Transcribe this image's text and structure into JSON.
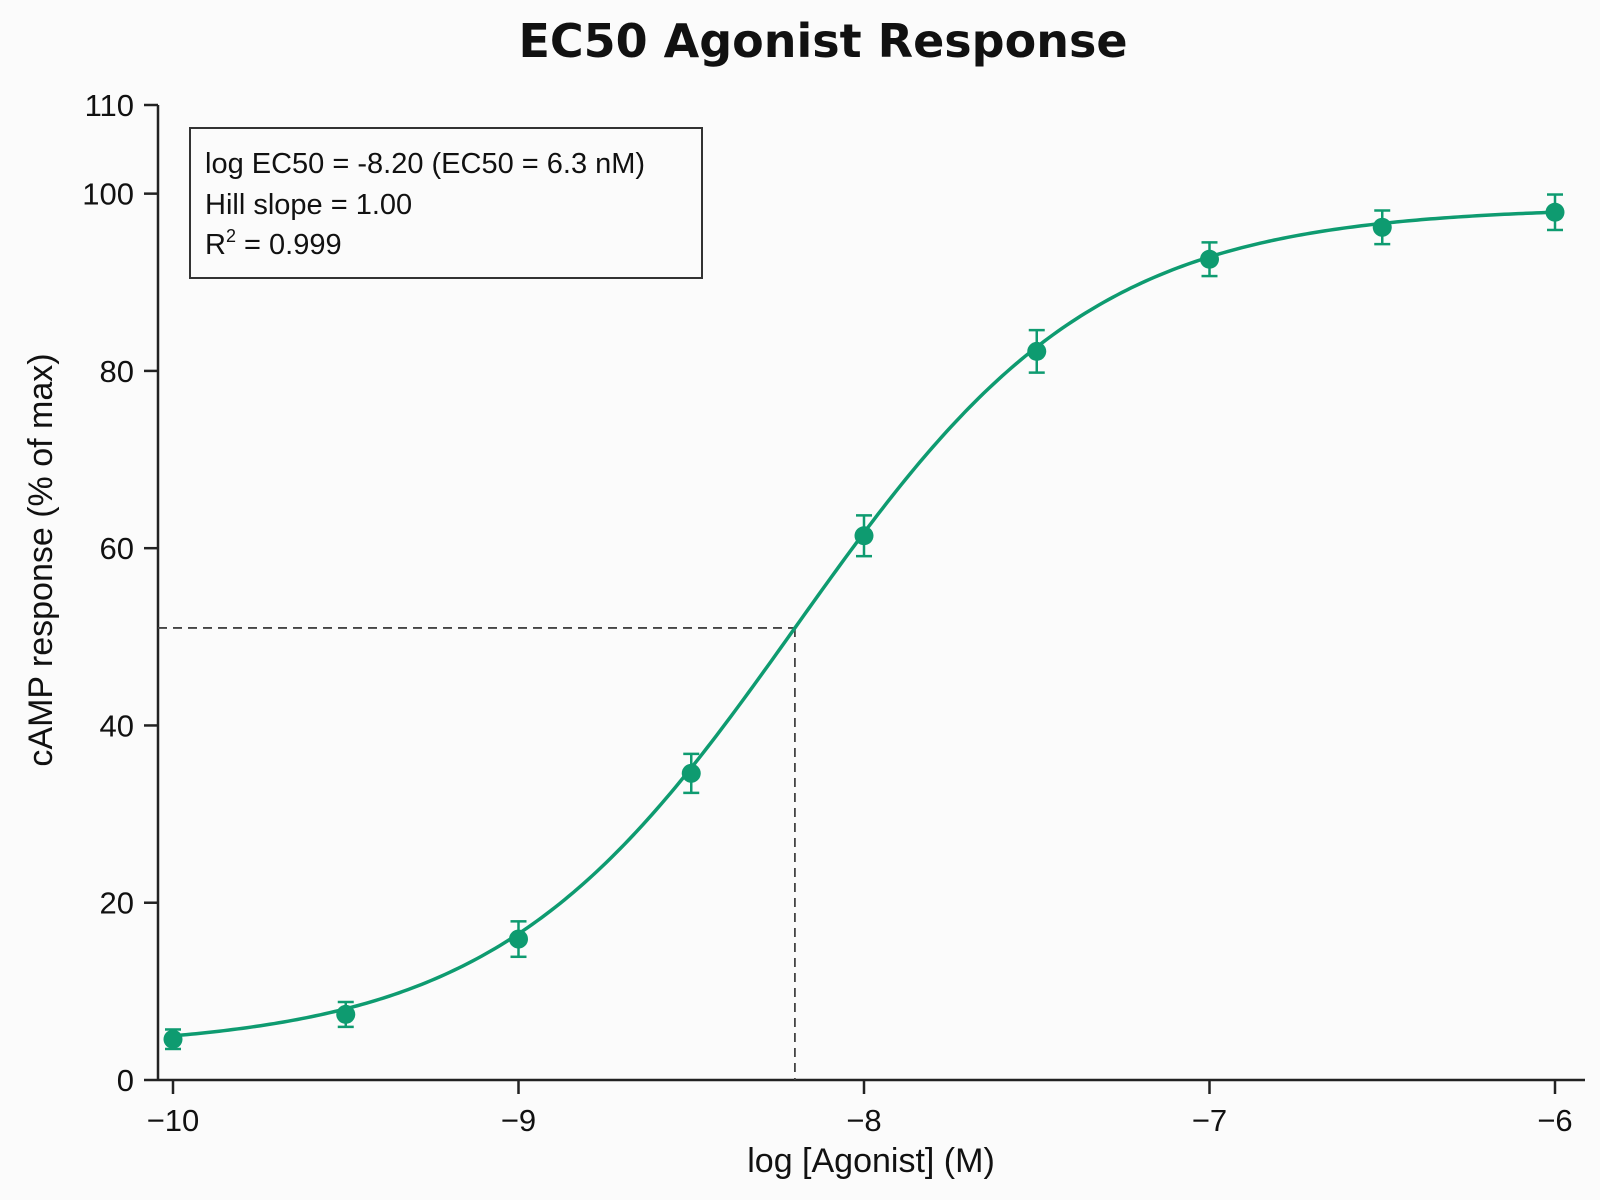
{
  "chart_data": {
    "type": "scatter",
    "title": "EC50 Agonist Response",
    "xlabel": "log [Agonist] (M)",
    "ylabel": "cAMP response (% of max)",
    "xlim": [
      -10,
      -6
    ],
    "ylim": [
      0,
      110
    ],
    "x_ticks": [
      -10,
      -9,
      -8,
      -7,
      -6
    ],
    "x_tick_labels": [
      "−10",
      "−9",
      "−8",
      "−7",
      "−6"
    ],
    "y_ticks": [
      0,
      20,
      40,
      60,
      80,
      100,
      110
    ],
    "y_tick_labels": [
      "0",
      "20",
      "40",
      "60",
      "80",
      "100",
      "110"
    ],
    "grid": false,
    "color": "#0e9b70",
    "series": [
      {
        "x": [
          -10,
          -9.5,
          -9,
          -8.5,
          -8,
          -7.5,
          -7,
          -6.5,
          -6
        ],
        "y": [
          4.6,
          7.4,
          15.9,
          34.6,
          61.4,
          82.2,
          92.6,
          96.2,
          97.9
        ],
        "error": [
          1.1,
          1.4,
          2.0,
          2.2,
          2.3,
          2.4,
          1.9,
          1.9,
          2.0
        ]
      }
    ],
    "fit": {
      "bottom": 3.5,
      "top": 98.5,
      "log_ec50": -8.2,
      "hill_slope": 1.0
    },
    "reference_lines": {
      "x": -8.2,
      "y": 51
    },
    "annotations": [
      {
        "text": "log EC50 = -8.20 (EC50 = 6.3 nM)"
      },
      {
        "text": "Hill slope = 1.00"
      },
      {
        "text": "R",
        "sup": "2",
        "suffix": " = 0.999"
      }
    ]
  }
}
